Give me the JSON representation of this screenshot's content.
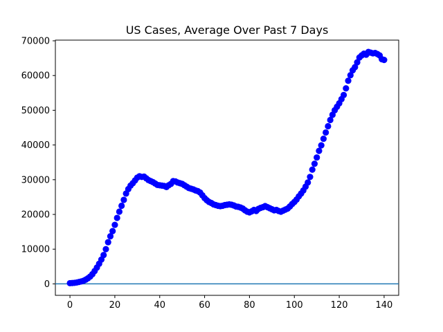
{
  "chart_data": {
    "type": "scatter",
    "title": "US Cases, Average Over Past 7 Days",
    "xlabel": "",
    "ylabel": "",
    "xlim": [
      -6.5,
      146.5
    ],
    "ylim": [
      -3300,
      70200
    ],
    "xticks": [
      0,
      20,
      40,
      60,
      80,
      100,
      120,
      140
    ],
    "yticks": [
      0,
      10000,
      20000,
      30000,
      40000,
      50000,
      60000,
      70000
    ],
    "marker_color": "#0000ff",
    "baseline": {
      "y": 0,
      "color": "#1f77b4"
    },
    "grid": false,
    "series": [
      {
        "x": [
          0,
          1,
          2,
          3,
          4,
          5,
          6,
          7,
          8,
          9,
          10,
          11,
          12,
          13,
          14,
          15,
          16,
          17,
          18,
          19,
          20,
          21,
          22,
          23,
          24,
          25,
          26,
          27,
          28,
          29,
          30,
          31,
          32,
          33,
          34,
          35,
          36,
          37,
          38,
          39,
          40,
          41,
          42,
          43,
          44,
          45,
          46,
          47,
          48,
          49,
          50,
          51,
          52,
          53,
          54,
          55,
          56,
          57,
          58,
          59,
          60,
          61,
          62,
          63,
          64,
          65,
          66,
          67,
          68,
          69,
          70,
          71,
          72,
          73,
          74,
          75,
          76,
          77,
          78,
          79,
          80,
          81,
          82,
          83,
          84,
          85,
          86,
          87,
          88,
          89,
          90,
          91,
          92,
          93,
          94,
          95,
          96,
          97,
          98,
          99,
          100,
          101,
          102,
          103,
          104,
          105,
          106,
          107,
          108,
          109,
          110,
          111,
          112,
          113,
          114,
          115,
          116,
          117,
          118,
          119,
          120,
          121,
          122,
          123,
          124,
          125,
          126,
          127,
          128,
          129,
          130,
          131,
          132,
          133,
          134,
          135,
          136,
          137,
          138,
          139,
          140
        ],
        "y": [
          200,
          250,
          300,
          400,
          550,
          700,
          900,
          1200,
          1600,
          2100,
          2800,
          3700,
          4700,
          5800,
          7000,
          8300,
          10000,
          12000,
          13700,
          15200,
          17000,
          19000,
          20800,
          22500,
          24200,
          26000,
          27300,
          28300,
          29000,
          29800,
          30600,
          31000,
          30800,
          30900,
          30400,
          29900,
          29600,
          29300,
          28900,
          28500,
          28400,
          28300,
          28200,
          27900,
          28400,
          28800,
          29600,
          29500,
          29200,
          29000,
          28800,
          28400,
          28000,
          27600,
          27400,
          27200,
          26900,
          26700,
          26300,
          25500,
          24700,
          24100,
          23600,
          23300,
          22900,
          22700,
          22500,
          22400,
          22500,
          22700,
          22800,
          22900,
          22800,
          22600,
          22300,
          22200,
          22000,
          21700,
          21200,
          20800,
          20600,
          20900,
          21300,
          21000,
          21600,
          21900,
          22100,
          22400,
          22100,
          21800,
          21500,
          21200,
          21300,
          21000,
          20800,
          21100,
          21400,
          21700,
          22300,
          23000,
          23600,
          24300,
          25200,
          26000,
          26900,
          28000,
          29200,
          30800,
          32900,
          34600,
          36400,
          38300,
          39900,
          41800,
          43600,
          45400,
          47200,
          48700,
          50000,
          51000,
          52000,
          53200,
          54400,
          56300,
          58500,
          60100,
          61500,
          62400,
          63800,
          65200,
          65800,
          66300,
          66000,
          66800,
          66600,
          66400,
          66500,
          66200,
          65800,
          64700,
          64500
        ]
      }
    ]
  }
}
